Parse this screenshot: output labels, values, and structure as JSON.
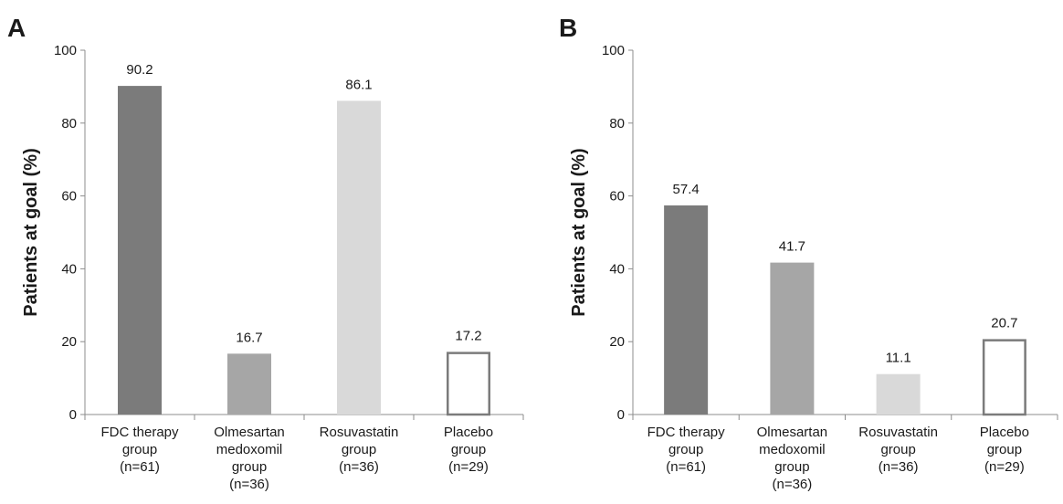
{
  "chart_data": [
    {
      "panel": "A",
      "type": "bar",
      "ylabel": "Patients at goal (%)",
      "xlabel": "",
      "ylim": [
        0,
        100
      ],
      "yticks": [
        0,
        20,
        40,
        60,
        80,
        100
      ],
      "categories": [
        [
          "FDC therapy",
          "group",
          "(n=61)"
        ],
        [
          "Olmesartan",
          "medoxomil",
          "group",
          "(n=36)"
        ],
        [
          "Rosuvastatin",
          "group",
          "(n=36)"
        ],
        [
          "Placebo",
          "group",
          "(n=29)"
        ]
      ],
      "values": [
        90.2,
        16.7,
        86.1,
        17.2
      ],
      "value_labels": [
        "90.2",
        "16.7",
        "86.1",
        "17.2"
      ],
      "bar_fills": [
        "#7b7b7b",
        "#a6a6a6",
        "#d9d9d9",
        "#ffffff"
      ],
      "bar_strokes": [
        "none",
        "none",
        "none",
        "#7b7b7b"
      ],
      "grid": false,
      "legend": "none"
    },
    {
      "panel": "B",
      "type": "bar",
      "ylabel": "Patients at goal (%)",
      "xlabel": "",
      "ylim": [
        0,
        100
      ],
      "yticks": [
        0,
        20,
        40,
        60,
        80,
        100
      ],
      "categories": [
        [
          "FDC therapy",
          "group",
          "(n=61)"
        ],
        [
          "Olmesartan",
          "medoxomil",
          "group",
          "(n=36)"
        ],
        [
          "Rosuvastatin",
          "group",
          "(n=36)"
        ],
        [
          "Placebo",
          "group",
          "(n=29)"
        ]
      ],
      "values": [
        57.4,
        41.7,
        11.1,
        20.7
      ],
      "value_labels": [
        "57.4",
        "41.7",
        "11.1",
        "20.7"
      ],
      "bar_fills": [
        "#7b7b7b",
        "#a6a6a6",
        "#d9d9d9",
        "#ffffff"
      ],
      "bar_strokes": [
        "none",
        "none",
        "none",
        "#7b7b7b"
      ],
      "grid": false,
      "legend": "none"
    }
  ]
}
